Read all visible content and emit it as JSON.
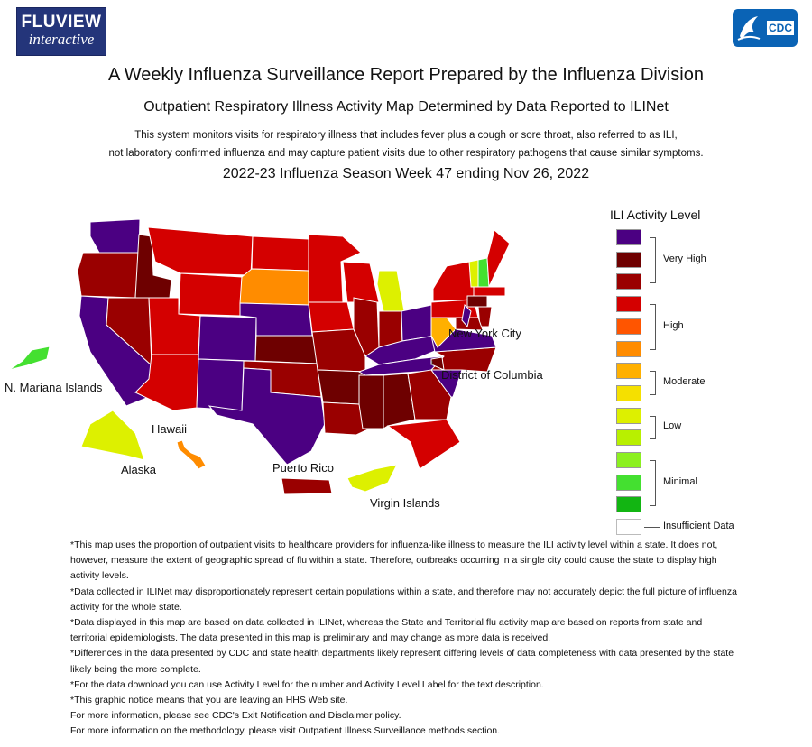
{
  "header": {
    "fluview_logo_line1": "FLUVIEW",
    "fluview_logo_line2": "interactive",
    "cdc_logo_text": "CDC"
  },
  "titles": {
    "main": "A Weekly Influenza Surveillance Report Prepared by the Influenza Division",
    "subtitle": "Outpatient Respiratory Illness Activity Map Determined by Data Reported to ILINet",
    "description_line1": "This system monitors visits for respiratory illness that includes fever plus a cough or sore throat, also referred to as ILI,",
    "description_line2": "not laboratory confirmed influenza and may capture patient visits due to other respiratory pathogens that cause similar symptoms.",
    "season": "2022-23 Influenza Season Week 47 ending Nov 26, 2022"
  },
  "map_labels": {
    "new_york_city": "New York City",
    "district_of_columbia": "District of Columbia",
    "mariana": "N. Mariana Islands",
    "hawaii": "Hawaii",
    "alaska": "Alaska",
    "puerto_rico": "Puerto Rico",
    "virgin_islands": "Virgin Islands"
  },
  "legend": {
    "title": "ILI Activity Level",
    "levels": [
      {
        "level": 13,
        "color": "#4b0082"
      },
      {
        "level": 12,
        "color": "#6e0000"
      },
      {
        "level": 11,
        "color": "#9a0000"
      },
      {
        "level": 10,
        "color": "#d40000"
      },
      {
        "level": 9,
        "color": "#ff5500"
      },
      {
        "level": 8,
        "color": "#ff8c00"
      },
      {
        "level": 7,
        "color": "#ffb000"
      },
      {
        "level": 6,
        "color": "#f5e000"
      },
      {
        "level": 5,
        "color": "#ddf000"
      },
      {
        "level": 4,
        "color": "#b8f000"
      },
      {
        "level": 3,
        "color": "#8cf020"
      },
      {
        "level": 2,
        "color": "#44e030"
      },
      {
        "level": 1,
        "color": "#12b512"
      },
      {
        "level": 0,
        "color": "#ffffff"
      }
    ],
    "groups": {
      "very_high": "Very High",
      "high": "High",
      "moderate": "Moderate",
      "low": "Low",
      "minimal": "Minimal",
      "insufficient": "Insufficient Data"
    }
  },
  "notes": [
    "*This map uses the proportion of outpatient visits to healthcare providers for influenza-like illness to measure the ILI activity level within a state. It does not, however, measure the extent of geographic spread of flu within a state. Therefore, outbreaks occurring in a single city could cause the state to display high activity levels.",
    "*Data collected in ILINet may disproportionately represent certain populations within a state, and therefore may not accurately depict the full picture of influenza activity for the whole state.",
    "*Data displayed in this map are based on data collected in ILINet, whereas the State and Territorial flu activity map are based on reports from state and territorial epidemiologists. The data presented in this map is preliminary and may change as more data is received.",
    "*Differences in the data presented by CDC and state health departments likely represent differing levels of data completeness with data presented by the state likely being the more complete.",
    "*For the data download you can use Activity Level for the number and Activity Level Label for the text description.",
    "*This graphic notice means that you are leaving an HHS Web site.",
    "For more information, please see CDC's Exit Notification and Disclaimer policy.",
    "For more information on the methodology, please visit Outpatient Illness Surveillance methods section."
  ],
  "region_levels": {
    "WA": 13,
    "OR": 11,
    "CA": 13,
    "NV": 11,
    "ID": 12,
    "MT": 10,
    "WY": 10,
    "UT": 10,
    "AZ": 10,
    "CO": 13,
    "NM": 13,
    "ND": 10,
    "SD": 8,
    "NE": 13,
    "KS": 12,
    "OK": 11,
    "TX": 13,
    "MN": 10,
    "IA": 10,
    "MO": 11,
    "AR": 12,
    "LA": 11,
    "WI": 10,
    "IL": 11,
    "MI": 5,
    "IN": 11,
    "OH": 13,
    "KY": 13,
    "TN": 13,
    "MS": 12,
    "AL": 12,
    "GA": 11,
    "FL": 10,
    "SC": 13,
    "NC": 11,
    "VA": 13,
    "WV": 7,
    "PA": 10,
    "NY": 10,
    "VT": 5,
    "NH": 2,
    "ME": 10,
    "MA": 10,
    "NJ": 11,
    "CT": 12,
    "MD": 11,
    "NYC": 13,
    "DC": 12,
    "AK": 5,
    "HI": 8,
    "PR": 11,
    "VI": 5,
    "MP": 2
  }
}
